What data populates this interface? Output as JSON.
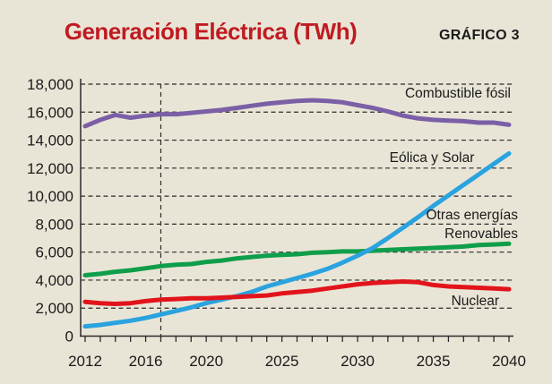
{
  "title": "Generación Eléctrica (TWh)",
  "corner_label": "GRÁFICO 3",
  "colors": {
    "background": "#e9e5d6",
    "title": "#c01b21",
    "text": "#1a1a1a",
    "axis": "#2b2b2b",
    "fossil": "#7b5fa6",
    "wind_solar": "#2aa3df",
    "renewables": "#0f9e4a",
    "nuclear": "#e2131b"
  },
  "chart_data": {
    "type": "line",
    "title": "Generación Eléctrica (TWh)",
    "xlabel": "",
    "ylabel": "",
    "ylim": [
      0,
      18000
    ],
    "grid": "dashed horizontal gridlines",
    "legend_position": "inline annotations next to lines",
    "reference_line_x": 2017,
    "y_ticks": [
      0,
      2000,
      4000,
      6000,
      8000,
      10000,
      12000,
      14000,
      16000,
      18000
    ],
    "y_tick_labels": [
      "0",
      "2,000",
      "4,000",
      "6,000",
      "8,000",
      "10,000",
      "12,000",
      "14,000",
      "16,000",
      "18,000"
    ],
    "x_tick_years": [
      2012,
      2016,
      2020,
      2025,
      2030,
      2035,
      2040
    ],
    "x_tick_labels": [
      "2012",
      "2016",
      "2020",
      "2025",
      "2030",
      "2035",
      "2040"
    ],
    "x": [
      2012,
      2013,
      2014,
      2015,
      2016,
      2017,
      2018,
      2019,
      2020,
      2021,
      2022,
      2023,
      2024,
      2025,
      2026,
      2027,
      2028,
      2029,
      2030,
      2031,
      2032,
      2033,
      2034,
      2035,
      2036,
      2037,
      2038,
      2039,
      2040
    ],
    "series": [
      {
        "name": "Combustible fósil",
        "color_key": "fossil",
        "values": [
          15000,
          15450,
          15800,
          15600,
          15750,
          15850,
          15850,
          15950,
          16050,
          16150,
          16300,
          16450,
          16600,
          16700,
          16800,
          16850,
          16800,
          16700,
          16500,
          16300,
          16050,
          15750,
          15550,
          15450,
          15400,
          15350,
          15250,
          15250,
          15100
        ]
      },
      {
        "name": "Otras energías Renovables",
        "color_key": "renewables",
        "values": [
          4350,
          4450,
          4600,
          4700,
          4850,
          5000,
          5100,
          5150,
          5300,
          5400,
          5550,
          5650,
          5750,
          5800,
          5850,
          5950,
          6000,
          6050,
          6050,
          6100,
          6150,
          6200,
          6250,
          6300,
          6350,
          6400,
          6500,
          6550,
          6600
        ]
      },
      {
        "name": "Eólica y Solar",
        "color_key": "wind_solar",
        "values": [
          700,
          800,
          950,
          1100,
          1300,
          1550,
          1800,
          2050,
          2350,
          2600,
          2850,
          3150,
          3550,
          3850,
          4150,
          4450,
          4800,
          5250,
          5750,
          6300,
          7000,
          7750,
          8500,
          9300,
          10050,
          10800,
          11550,
          12300,
          13050
        ]
      },
      {
        "name": "Nuclear",
        "color_key": "nuclear",
        "values": [
          2450,
          2350,
          2300,
          2350,
          2500,
          2600,
          2650,
          2700,
          2700,
          2750,
          2800,
          2850,
          2900,
          3050,
          3150,
          3250,
          3400,
          3550,
          3700,
          3800,
          3850,
          3900,
          3850,
          3650,
          3550,
          3500,
          3450,
          3400,
          3350
        ]
      }
    ],
    "annotations": [
      {
        "text": "Combustible fósil",
        "x": 570,
        "y": 109,
        "anchor": "end"
      },
      {
        "text": "Eólica y Solar",
        "x": 482,
        "y": 181,
        "anchor": "middle"
      },
      {
        "text": "Otras energías",
        "x": 578,
        "y": 245,
        "anchor": "end"
      },
      {
        "text": "Renovables",
        "x": 578,
        "y": 266,
        "anchor": "end"
      },
      {
        "text": "Nuclear",
        "x": 557,
        "y": 341,
        "anchor": "end"
      }
    ]
  }
}
